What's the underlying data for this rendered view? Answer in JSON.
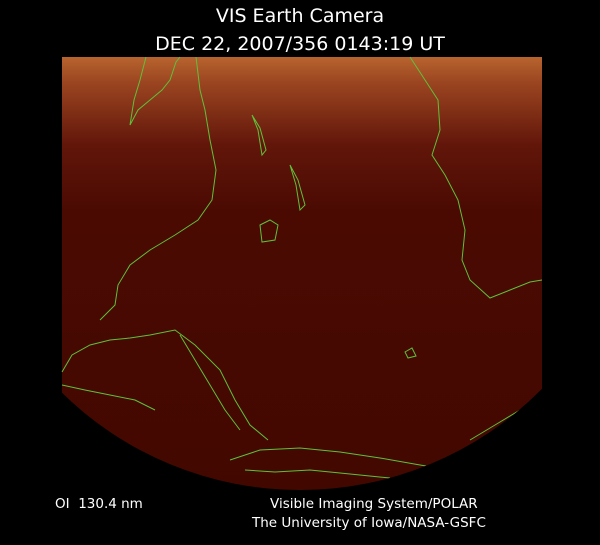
{
  "header": {
    "title": "VIS Earth Camera",
    "subtitle": "DEC 22, 2007/356 0143:19 UT"
  },
  "footer": {
    "band": "OI  130.4 nm",
    "system": "Visible Imaging System/POLAR",
    "institution": "The University of Iowa/NASA-GSFC"
  }
}
